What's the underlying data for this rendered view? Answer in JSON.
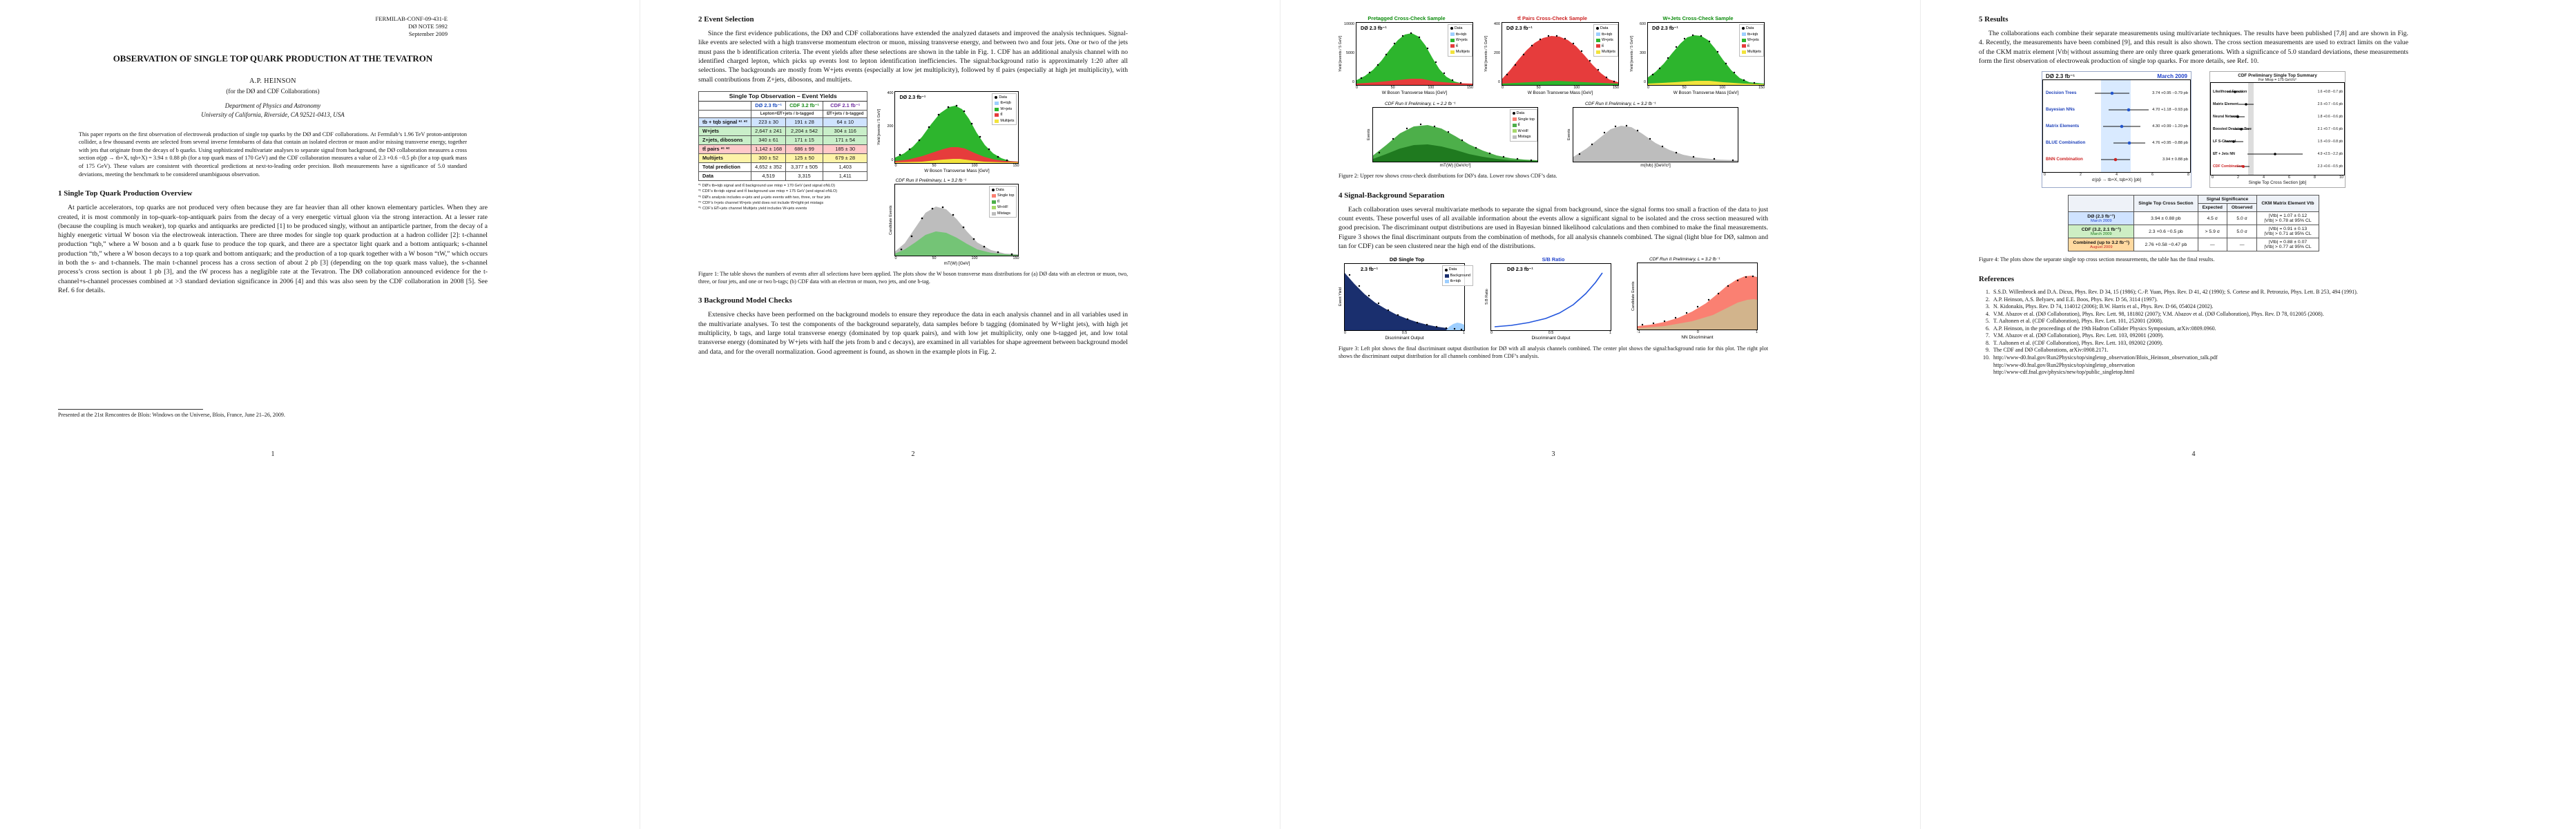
{
  "shared": {
    "do_legend": [
      "Data",
      "tb+tqb",
      "W+jets",
      "tt̄",
      "Multijets"
    ],
    "cdf_legend": [
      "Data",
      "Single top",
      "tt̄",
      "W+HF",
      "Mistags"
    ],
    "f3_legend": [
      "Data",
      "Background",
      "tb+tqb"
    ],
    "do_lumi": "DØ  2.3 fb⁻¹",
    "wmass_xlab": "W Boson Transverse Mass  [GeV]",
    "wmass_xticks": [
      "0",
      "50",
      "100",
      "150"
    ],
    "yield_ylab": "Yield  [events / 5 GeV]",
    "disc_xlab": "Discriminant Output"
  },
  "page1": {
    "page_number": "1",
    "header_lines": [
      "FERMILAB-CONF-09-431-E",
      "DØ NOTE 5992",
      "September 2009"
    ],
    "title": "OBSERVATION OF SINGLE TOP QUARK PRODUCTION AT THE TEVATRON",
    "author": "A.P. HEINSON",
    "collab": "(for the DØ and CDF Collaborations)",
    "dept": "Department of Physics and Astronomy",
    "univ": "University of California, Riverside, CA 92521-0413, USA",
    "abstract": "This paper reports on the first observation of electroweak production of single top quarks by the DØ and CDF collaborations. At Fermilab’s 1.96 TeV proton-antiproton collider, a few thousand events are selected from several inverse femtobarns of data that contain an isolated electron or muon and/or missing transverse energy, together with jets that originate from the decays of b quarks. Using sophisticated multivariate analyses to separate signal from background, the DØ collaboration measures a cross section σ(pp̄ → tb+X, tqb+X) = 3.94 ± 0.88 pb (for a top quark mass of 170 GeV) and the CDF collaboration measures a value of 2.3 +0.6 −0.5 pb (for a top quark mass of 175 GeV). These values are consistent with theoretical predictions at next-to-leading order precision. Both measurements have a significance of 5.0 standard deviations, meeting the benchmark to be considered unambiguous observation.",
    "section1_heading": "1   Single Top Quark Production Overview",
    "section1_text": "At particle accelerators, top quarks are not produced very often because they are far heavier than all other known elementary particles. When they are created, it is most commonly in top-quark–top-antiquark pairs from the decay of a very energetic virtual gluon via the strong interaction. At a lesser rate (because the coupling is much weaker), top quarks and antiquarks are predicted [1] to be produced singly, without an antiparticle partner, from the decay of a highly energetic virtual W boson via the electroweak interaction. There are three modes for single top quark production at a hadron collider [2]: t-channel production “tqb,” where a W boson and a b quark fuse to produce the top quark, and there are a spectator light quark and a bottom antiquark; s-channel production “tb,” where a W boson decays to a top quark and bottom antiquark; and the production of a top quark together with a W boson “tW,” which occurs in both the s- and t-channels. The main t-channel process has a cross section of about 2 pb [3] (depending on the top quark mass value), the s-channel process’s cross section is about 1 pb [3], and the tW process has a negligible rate at the Tevatron. The DØ collaboration announced evidence for the t-channel+s-channel processes combined at >3 standard deviation significance in 2006 [4] and this was also seen by the CDF collaboration in 2008 [5]. See Ref. 6 for details.",
    "footnote": "Presented at the 21st Rencontres de Blois: Windows on the Universe, Blois, France, June 21–26, 2009."
  },
  "page2": {
    "page_number": "2",
    "section2_heading": "2   Event Selection",
    "section2_text": "Since the first evidence publications, the DØ and CDF collaborations have extended the analyzed datasets and improved the analysis techniques. Signal-like events are selected with a high transverse momentum electron or muon, missing transverse energy, and between two and four jets. One or two of the jets must pass the b identification criteria. The event yields after these selections are shown in the table in Fig. 1. CDF has an additional analysis channel with no identified charged lepton, which picks up events lost to lepton identification inefficiencies. The signal:background ratio is approximately 1:20 after all selections. The backgrounds are mostly from W+jets events (especially at low jet multiplicity), followed by tt̄ pairs (especially at high jet multiplicity), with small contributions from Z+jets, dibosons, and multijets.",
    "table": {
      "title": "Single Top Observation  –  Event Yields",
      "col_headers": [
        "DØ  2.3 fb⁻¹",
        "CDF  3.2 fb⁻¹",
        "CDF  2.1 fb⁻¹"
      ],
      "sub_left": "Lepton+E̸T+jets / b-tagged",
      "sub_right": "E̸T+jets / b-tagged",
      "rows": [
        {
          "label": "tb + tqb signal *¹ *²",
          "c1": "223 ± 30",
          "c2": "191 ± 28",
          "c3": "64 ± 10"
        },
        {
          "label": "W+jets",
          "c1": "2,647 ± 241",
          "c2": "2,204 ± 542",
          "c3": "304 ± 116"
        },
        {
          "label": "Z+jets, dibosons",
          "c1": "340 ± 61",
          "c2": "171 ± 15",
          "c3": "171 ± 54"
        },
        {
          "label": "tt̄ pairs *¹ *²",
          "c1": "1,142 ± 168",
          "c2": "686 ± 99",
          "c3": "185 ± 30"
        },
        {
          "label": "Multijets",
          "c1": "300 ± 52",
          "c2": "125 ± 50",
          "c3": "679 ± 28"
        },
        {
          "label": "Total prediction",
          "c1": "4,652 ± 352",
          "c2": "3,377 ± 505",
          "c3": "1,403"
        },
        {
          "label": "Data",
          "c1": "4,519",
          "c2": "3,315",
          "c3": "1,411"
        }
      ],
      "footnotes": [
        "*¹  DØ’s tb+tqb signal and tt̄ background use mtop = 170 GeV (and signal σNLO)",
        "*²  CDF’s tb+tqb signal and tt̄ background use mtop = 175 GeV (and signal σNLO)",
        "*³  DØ’s analysis includes e+jets and μ+jets events with two, three, or four jets",
        "*⁴  CDF’s ℓ+jets channel W+jets yield does not include W+light-jet mistags",
        "*⁵  CDF’s E̸T+jets channel Multijets yield includes W+jets events"
      ]
    },
    "fig1": {
      "a": {
        "yticks": [
          "400",
          "200",
          "0"
        ]
      },
      "b": {
        "head": "CDF Run II Preliminary, L = 3.2 fb⁻¹",
        "ylab": "Candidate Events",
        "xlab": "mT(W)  [GeV]"
      },
      "caption": "Figure 1:  The table shows the numbers of events after all selections have been applied. The plots show the W boson transverse mass distributions for (a) DØ data with an electron or muon, two, three, or four jets, and one or two b-tags; (b) CDF data with an electron or muon, two jets, and one b-tag."
    },
    "section3_heading": "3   Background Model Checks",
    "section3_text": "Extensive checks have been performed on the background models to ensure they reproduce the data in each analysis channel and in all variables used in the multivariate analyses. To test the components of the background separately, data samples before b tagging (dominated by W+light jets), with high jet multiplicity, b tags, and large total transverse energy (dominated by top quark pairs), and with low jet multiplicity, only one b-tagged jet, and low total transverse energy (dominated by W+jets with half the jets from b and c decays), are examined in all variables for shape agreement between background model and data, and for the overall normalization. Good agreement is found, as shown in the example plots in Fig. 2."
  },
  "page3": {
    "page_number": "3",
    "fig2": {
      "a": {
        "head": "Pretagged Cross-Check Sample",
        "yticks": [
          "10000",
          "5000",
          "0"
        ]
      },
      "b": {
        "head": "tt̄ Pairs Cross-Check Sample",
        "yticks": [
          "400",
          "200",
          "0"
        ]
      },
      "c": {
        "head": "W+Jets Cross-Check Sample",
        "yticks": [
          "600",
          "300",
          "0"
        ]
      },
      "d": {
        "head": "CDF Run II Preliminary, L = 2.2 fb⁻¹",
        "ylab": "Events",
        "xlab": "mT(W)  [GeV/c²]"
      },
      "e": {
        "head": "CDF Run II Preliminary, L = 3.2 fb⁻¹",
        "ylab": "Events",
        "xlab": "m(ℓνb)  [GeV/c²]"
      },
      "caption": "Figure 2:  Upper row shows cross-check distributions for DØ’s data. Lower row shows CDF’s data."
    },
    "section4_heading": "4   Signal-Background Separation",
    "section4_text": "Each collaboration uses several multivariate methods to separate the signal from background, since the signal forms too small a fraction of the data to just count events. These powerful uses of all available information about the events allow a significant signal to be isolated and the cross section measured with good precision. The discriminant output distributions are used in Bayesian binned likelihood calculations and then combined to make the final measurements. Figure 3 shows the final discriminant outputs from the combination of methods, for all analysis channels combined. The signal (light blue for DØ, salmon and tan for CDF) can be seen clustered near the high end of the distributions.",
    "fig3": {
      "a": {
        "head": "DØ Single Top",
        "inplot": "2.3 fb⁻¹",
        "ylab": "Event Yield",
        "xticks": [
          "0",
          "0.5",
          "1"
        ]
      },
      "b": {
        "head": "S/B Ratio",
        "ylab": "S:B Ratio",
        "xticks": [
          "0",
          "0.5",
          "1"
        ]
      },
      "c": {
        "head": "CDF Run II Preliminary, L = 3.2 fb⁻¹",
        "ylab": "Candidate Events",
        "xlab": "NN Discriminant",
        "xticks": [
          "-1",
          "0",
          "1"
        ]
      },
      "caption": "Figure 3:  Left plot shows the final discriminant output distribution for DØ with all analysis channels combined. The center plot shows the signal:background ratio for this plot. The right plot shows the discriminant output distribution for all channels combined from CDF’s analysis."
    }
  },
  "page4": {
    "page_number": "4",
    "section5_heading": "5   Results",
    "section5_text": "The collaborations each combine their separate measurements using multivariate techniques. The results have been published [7,8] and are shown in Fig. 4. Recently, the measurements have been combined [9], and this result is also shown. The cross section measurements are used to extract limits on the value of the CKM matrix element |Vtb| without assuming there are only three quark generations. With a significance of 5.0 standard deviations, these measurements form the first observation of electroweak production of single top quarks. For more details, see Ref. 10.",
    "fig4": {
      "do": {
        "lumi": "DØ  2.3 fb⁻¹",
        "date": "March 2009",
        "rows": [
          {
            "label": "Decision Trees",
            "value": "3.74 +0.95 −0.79 pb"
          },
          {
            "label": "Bayesian NNs",
            "value": "4.70 +1.18 −0.93 pb"
          },
          {
            "label": "Matrix Elements",
            "value": "4.30 +0.99 −1.20 pb"
          },
          {
            "label": "BLUE Combination",
            "value": "4.76 +0.95 −0.88 pb"
          },
          {
            "label": "BNN Combination",
            "value": "3.94 ± 0.88 pb"
          }
        ],
        "xlab": "σ(pp̄ → tb+X, tqb+X)   [pb]",
        "xticks": [
          "0",
          "2",
          "4",
          "6",
          "8"
        ]
      },
      "cdf": {
        "title": "CDF Preliminary Single Top Summary",
        "subtitle": "For Mtop = 175 GeV/c²",
        "rows": [
          {
            "label": "Likelihood Function",
            "value": "1.6 +0.8 −0.7 pb"
          },
          {
            "label": "Matrix Element",
            "value": "2.5 +0.7 −0.6 pb"
          },
          {
            "label": "Neural Network",
            "value": "1.8 +0.6 −0.6 pb"
          },
          {
            "label": "Boosted Decision Tree",
            "value": "2.1 +0.7 −0.6 pb"
          },
          {
            "label": "LF S-Channel",
            "value": "1.5 +0.9 −0.8 pb"
          },
          {
            "label": "E̸T + Jets NN",
            "value": "4.9 +2.5 −2.2 pb"
          },
          {
            "label": "CDF Combination",
            "value": "2.3 +0.6 −0.5 pb"
          }
        ],
        "xlab": "Single Top Cross Section   [pb]",
        "xticks": [
          "0",
          "2",
          "4",
          "6",
          "8",
          "10"
        ]
      },
      "table": {
        "h_xsec": "Single Top Cross Section",
        "h_sig": "Signal Significance",
        "h_exp": "Expected",
        "h_obs": "Observed",
        "h_vtb": "CKM Matrix Element Vtb",
        "rows": [
          {
            "label": "DØ  (2.3 fb⁻¹)",
            "date": "March 2009",
            "xsec": "3.94 ± 0.88 pb",
            "exp": "4.5 σ",
            "obs": "5.0 σ",
            "vtb1": "|Vtb| = 1.07 ± 0.12",
            "vtb2": "|Vtb| > 0.78  at 95% CL"
          },
          {
            "label": "CDF  (3.2, 2.1 fb⁻¹)",
            "date": "March 2009",
            "xsec": "2.3 +0.6 −0.5 pb",
            "exp": "> 5.9 σ",
            "obs": "5.0 σ",
            "vtb1": "|Vtb| = 0.91 ± 0.13",
            "vtb2": "|Vtb| > 0.71  at 95% CL"
          },
          {
            "label": "Combined  (up to 3.2 fb⁻¹)",
            "date": "August 2009",
            "xsec": "2.76 +0.58 −0.47 pb",
            "exp": "—",
            "obs": "—",
            "vtb1": "|Vtb| = 0.88 ± 0.07",
            "vtb2": "|Vtb| > 0.77  at 95% CL"
          }
        ]
      },
      "caption": "Figure 4:  The plots show the separate single top cross section measurements, the table has the final results."
    },
    "references_heading": "References",
    "references": [
      {
        "num": "1.",
        "text": "S.S.D. Willenbrock and D.A. Dicus, Phys. Rev. D 34, 15 (1986); C.-P. Yuan, Phys. Rev. D 41, 42 (1990); S. Cortese and R. Petronzio, Phys. Lett. B 253, 494 (1991)."
      },
      {
        "num": "2.",
        "text": "A.P. Heinson, A.S. Belyaev, and E.E. Boos, Phys. Rev. D 56, 3114 (1997)."
      },
      {
        "num": "3.",
        "text": "N. Kidonakis, Phys. Rev. D 74, 114012 (2006); B.W. Harris et al., Phys. Rev. D 66, 054024 (2002)."
      },
      {
        "num": "4.",
        "text": "V.M. Abazov et al. (DØ Collaboration), Phys. Rev. Lett. 98, 181802 (2007); V.M. Abazov et al. (DØ Collaboration), Phys. Rev. D 78, 012005 (2008)."
      },
      {
        "num": "5.",
        "text": "T. Aaltonen et al. (CDF Collaboration), Phys. Rev. Lett. 101, 252001 (2008)."
      },
      {
        "num": "6.",
        "text": "A.P. Heinson, in the proceedings of the 19th Hadron Collider Physics Symposium, arXiv:0809.0960."
      },
      {
        "num": "7.",
        "text": "V.M. Abazov et al. (DØ Collaboration), Phys. Rev. Lett. 103, 092001 (2009)."
      },
      {
        "num": "8.",
        "text": "T. Aaltonen et al. (CDF Collaboration), Phys. Rev. Lett. 103, 092002 (2009)."
      },
      {
        "num": "9.",
        "text": "The CDF and DØ Collaborations, arXiv:0908.2171."
      },
      {
        "num": "10.",
        "text": "http://www-d0.fnal.gov/Run2Physics/top/singletop_observation/Blois_Heinson_observation_talk.pdf\nhttp://www-d0.fnal.gov/Run2Physics/top/singletop_observation\nhttp://www-cdf.fnal.gov/physics/new/top/public_singletop.html"
      }
    ]
  }
}
